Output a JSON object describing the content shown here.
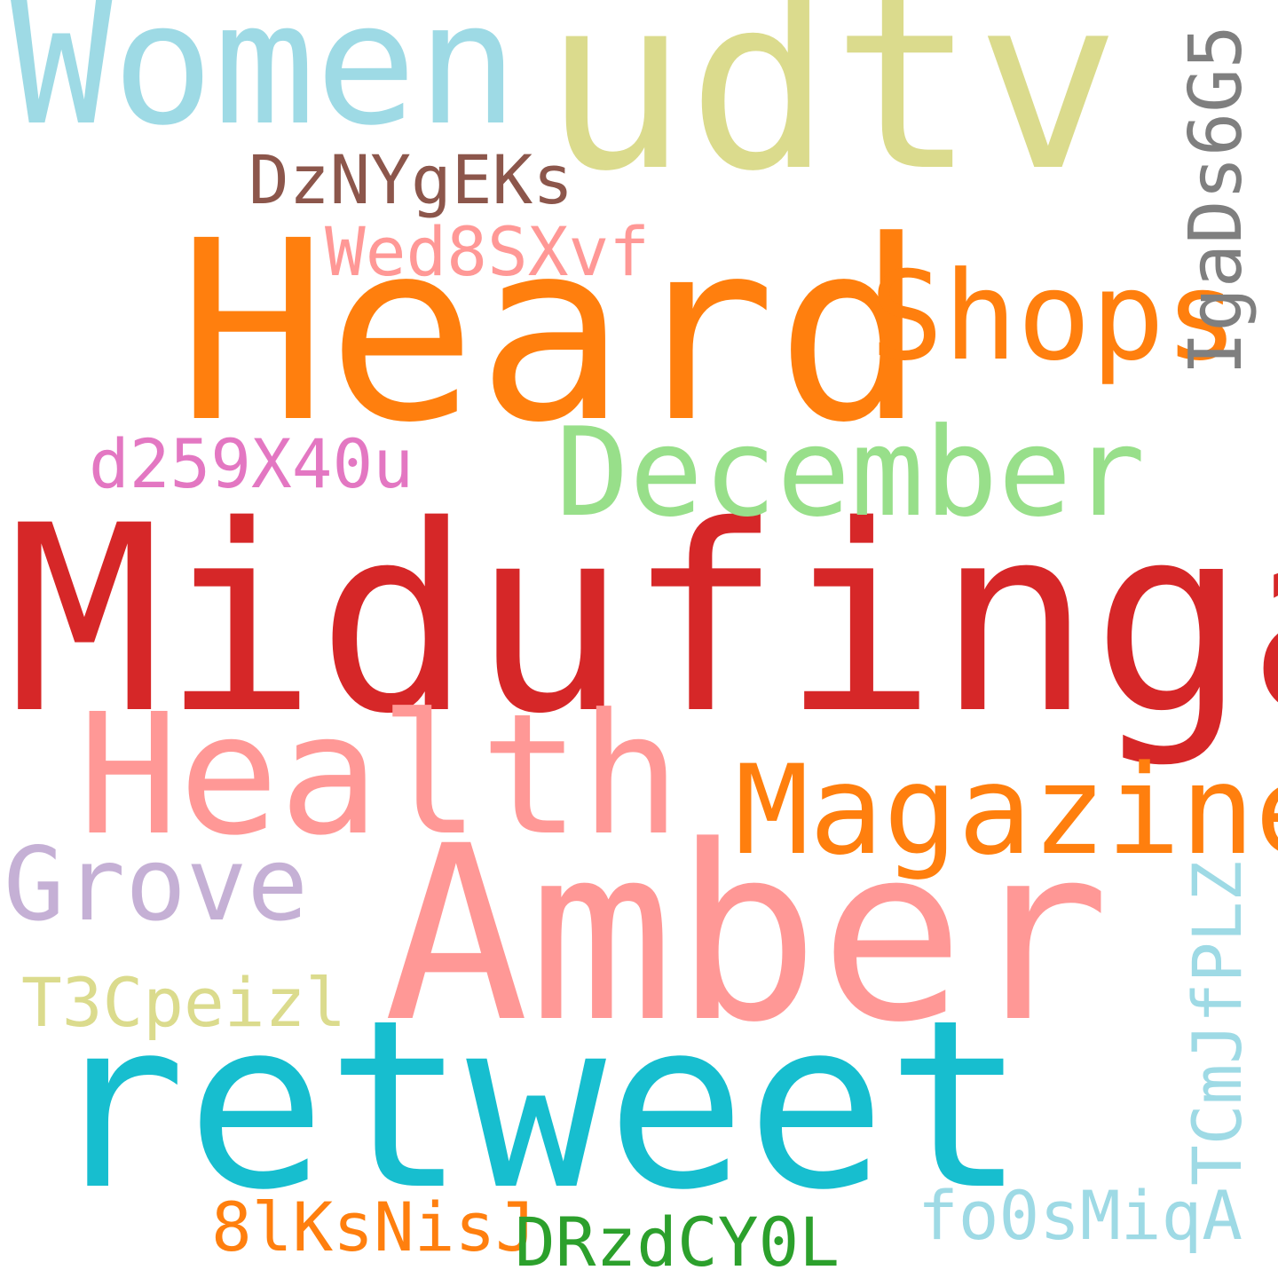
{
  "words": [
    {
      "text": "Midufinga",
      "color": "#d62728"
    },
    {
      "text": "Heard",
      "color": "#ff7f0e"
    },
    {
      "text": "Amber",
      "color": "#ff9896"
    },
    {
      "text": "retweet",
      "color": "#17becf"
    },
    {
      "text": "udtv",
      "color": "#dbdb8d"
    },
    {
      "text": "Women",
      "color": "#9edae5"
    },
    {
      "text": "Health",
      "color": "#ff9896"
    },
    {
      "text": "Magazine",
      "color": "#ff7f0e"
    },
    {
      "text": "December",
      "color": "#98df8a"
    },
    {
      "text": "Shops",
      "color": "#ff7f0e"
    },
    {
      "text": "Grove",
      "color": "#c5b0d5"
    },
    {
      "text": "IgaDs6G5",
      "color": "#7f7f7f"
    },
    {
      "text": "DzNYgEKs",
      "color": "#8c564b"
    },
    {
      "text": "Wed8SXvf",
      "color": "#ff9896"
    },
    {
      "text": "d259X40u",
      "color": "#e377c2"
    },
    {
      "text": "T3Cpeizl",
      "color": "#dbdb8d"
    },
    {
      "text": "TCmJfPLZ",
      "color": "#9edae5"
    },
    {
      "text": "8lKsNisJ",
      "color": "#ff7f0e"
    },
    {
      "text": "DRzdCY0L",
      "color": "#2ca02c"
    },
    {
      "text": "fo0sMiqA",
      "color": "#9edae5"
    }
  ]
}
